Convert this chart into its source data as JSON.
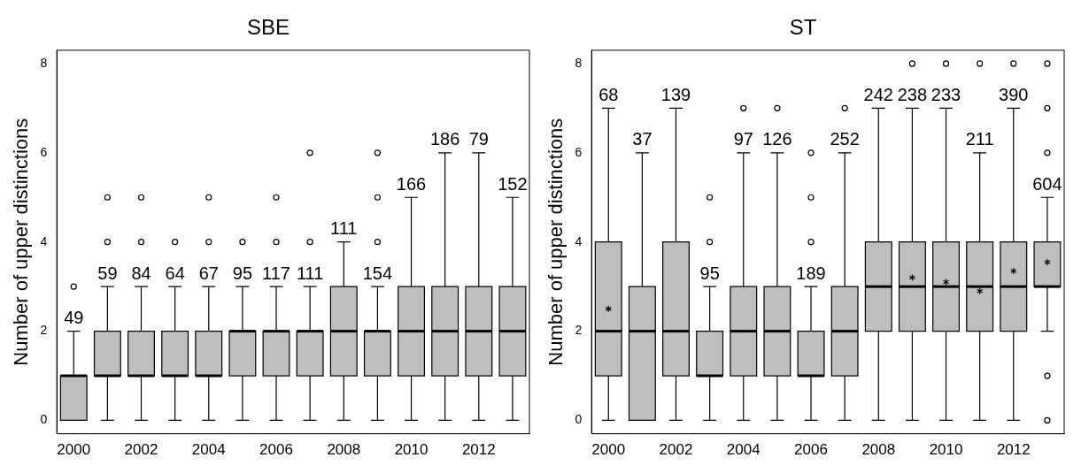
{
  "chart_data": [
    {
      "type": "box",
      "title": "SBE",
      "ylabel": "Number of upper distinctions",
      "categories": [
        "2000",
        null,
        "2002",
        null,
        "2004",
        null,
        "2006",
        null,
        "2008",
        null,
        "2010",
        null,
        "2012",
        null
      ],
      "ylim": [
        -0.3,
        8.3
      ],
      "yticks": [
        0,
        2,
        4,
        6,
        8
      ],
      "grid": false,
      "series": [
        {
          "color": "#bebebe",
          "boxes": [
            {
              "low": 0,
              "q1": 0,
              "median": 1,
              "q3": 1,
              "high": 2,
              "outliers": [
                3
              ]
            },
            {
              "low": 0,
              "q1": 1,
              "median": 1,
              "q3": 2,
              "high": 3,
              "outliers": [
                4,
                5
              ]
            },
            {
              "low": 0,
              "q1": 1,
              "median": 1,
              "q3": 2,
              "high": 3,
              "outliers": [
                4,
                5
              ]
            },
            {
              "low": 0,
              "q1": 1,
              "median": 1,
              "q3": 2,
              "high": 3,
              "outliers": [
                4
              ]
            },
            {
              "low": 0,
              "q1": 1,
              "median": 1,
              "q3": 2,
              "high": 3,
              "outliers": [
                4,
                5
              ]
            },
            {
              "low": 0,
              "q1": 1,
              "median": 2,
              "q3": 2,
              "high": 3,
              "outliers": [
                4
              ]
            },
            {
              "low": 0,
              "q1": 1,
              "median": 2,
              "q3": 2,
              "high": 3,
              "outliers": [
                4,
                5
              ]
            },
            {
              "low": 0,
              "q1": 1,
              "median": 2,
              "q3": 2,
              "high": 3,
              "outliers": [
                4,
                6
              ]
            },
            {
              "low": 0,
              "q1": 1,
              "median": 2,
              "q3": 3,
              "high": 4
            },
            {
              "low": 0,
              "q1": 1,
              "median": 2,
              "q3": 2,
              "high": 3,
              "outliers": [
                4,
                5,
                6
              ]
            },
            {
              "low": 0,
              "q1": 1,
              "median": 2,
              "q3": 3,
              "high": 5
            },
            {
              "low": 0,
              "q1": 1,
              "median": 2,
              "q3": 3,
              "high": 6
            },
            {
              "low": 0,
              "q1": 1,
              "median": 2,
              "q3": 3,
              "high": 6
            },
            {
              "low": 0,
              "q1": 1,
              "median": 2,
              "q3": 3,
              "high": 5
            }
          ]
        }
      ],
      "annotations": [
        "49",
        "59",
        "84",
        "64",
        "67",
        "95",
        "117",
        "111",
        "111",
        "154",
        "166",
        "186",
        "79",
        "152"
      ]
    },
    {
      "type": "box",
      "title": "ST",
      "ylabel": "Number of upper distinctions",
      "categories": [
        "2000",
        null,
        "2002",
        null,
        "2004",
        null,
        "2006",
        null,
        "2008",
        null,
        "2010",
        null,
        "2012",
        null
      ],
      "ylim": [
        -0.3,
        8.3
      ],
      "yticks": [
        0,
        2,
        4,
        6,
        8
      ],
      "grid": false,
      "series": [
        {
          "color": "#bebebe",
          "boxes": [
            {
              "low": 0,
              "q1": 1,
              "median": 2,
              "q3": 4,
              "high": 7,
              "mean": 2.5
            },
            {
              "low": 0,
              "q1": 0,
              "median": 2,
              "q3": 3,
              "high": 6
            },
            {
              "low": 0,
              "q1": 1,
              "median": 2,
              "q3": 4,
              "high": 7
            },
            {
              "low": 0,
              "q1": 1,
              "median": 1,
              "q3": 2,
              "high": 3,
              "outliers": [
                4,
                5
              ]
            },
            {
              "low": 0,
              "q1": 1,
              "median": 2,
              "q3": 3,
              "high": 6,
              "outliers": [
                7
              ]
            },
            {
              "low": 0,
              "q1": 1,
              "median": 2,
              "q3": 3,
              "high": 6,
              "outliers": [
                7
              ]
            },
            {
              "low": 0,
              "q1": 1,
              "median": 1,
              "q3": 2,
              "high": 3,
              "outliers": [
                4,
                5,
                6
              ]
            },
            {
              "low": 0,
              "q1": 1,
              "median": 2,
              "q3": 3,
              "high": 6,
              "outliers": [
                7
              ]
            },
            {
              "low": 0,
              "q1": 2,
              "median": 3,
              "q3": 4,
              "high": 7
            },
            {
              "low": 0,
              "q1": 2,
              "median": 3,
              "q3": 4,
              "high": 7,
              "outliers": [
                8
              ],
              "mean": 3.2
            },
            {
              "low": 0,
              "q1": 2,
              "median": 3,
              "q3": 4,
              "high": 7,
              "outliers": [
                8
              ],
              "mean": 3.1
            },
            {
              "low": 0,
              "q1": 2,
              "median": 3,
              "q3": 4,
              "high": 6,
              "outliers": [
                8
              ],
              "mean": 2.9
            },
            {
              "low": 0,
              "q1": 2,
              "median": 3,
              "q3": 4,
              "high": 7,
              "outliers": [
                8
              ],
              "mean": 3.35
            },
            {
              "low": 2,
              "q1": 3,
              "median": 3,
              "q3": 4,
              "high": 5,
              "outliers": [
                0,
                1,
                6,
                7,
                8
              ],
              "mean": 3.55
            }
          ]
        }
      ],
      "annotations": [
        "68",
        "37",
        "139",
        "95",
        "97",
        "126",
        "189",
        "252",
        "242",
        "238",
        "233",
        "211",
        "390",
        "604"
      ]
    }
  ]
}
